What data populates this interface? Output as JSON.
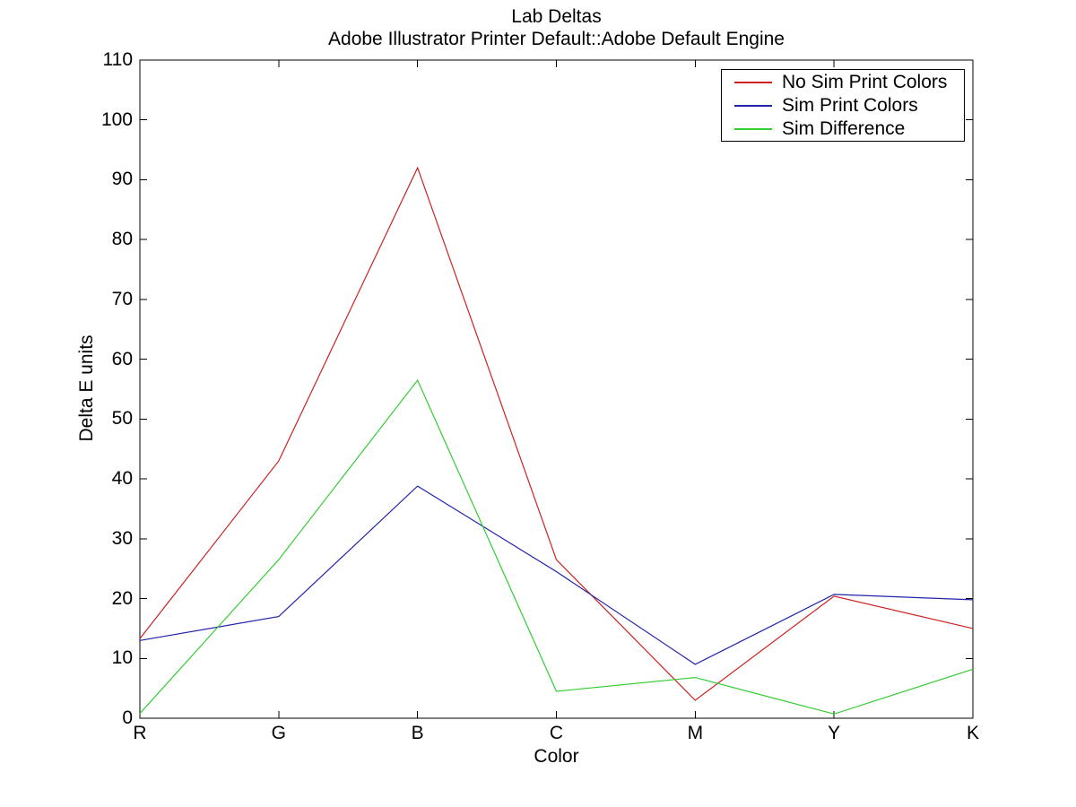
{
  "title": "Lab Deltas",
  "subtitle": "Adobe Illustrator Printer Default::Adobe Default Engine",
  "axis_color": "#000000",
  "background_color": "#ffffff",
  "chart_data": {
    "type": "line",
    "title": "Lab Deltas",
    "subtitle": "Adobe Illustrator Printer Default::Adobe Default Engine",
    "xlabel": "Color",
    "ylabel": "Delta E units",
    "categories": [
      "R",
      "G",
      "B",
      "C",
      "M",
      "Y",
      "K"
    ],
    "series": [
      {
        "name": "No Sim Print Colors",
        "color": "#cc2222",
        "values": [
          13.3,
          43,
          92,
          26.5,
          3,
          20.4,
          15
        ]
      },
      {
        "name": "Sim Print Colors",
        "color": "#2222aa",
        "values": [
          13.0,
          17,
          38.8,
          24.5,
          9,
          20.7,
          19.8
        ]
      },
      {
        "name": "Sim Difference",
        "color": "#33cc33",
        "values": [
          0.8,
          26.5,
          56.5,
          4.5,
          6.8,
          0.7,
          8.2
        ]
      }
    ],
    "ylim": [
      0,
      110
    ],
    "ytick_step": 10,
    "ytick_labels": [
      "0",
      "10",
      "20",
      "30",
      "40",
      "50",
      "60",
      "70",
      "80",
      "90",
      "100",
      "110"
    ],
    "grid": false,
    "legend_position": "top-right",
    "tick_style": "inward-box"
  }
}
